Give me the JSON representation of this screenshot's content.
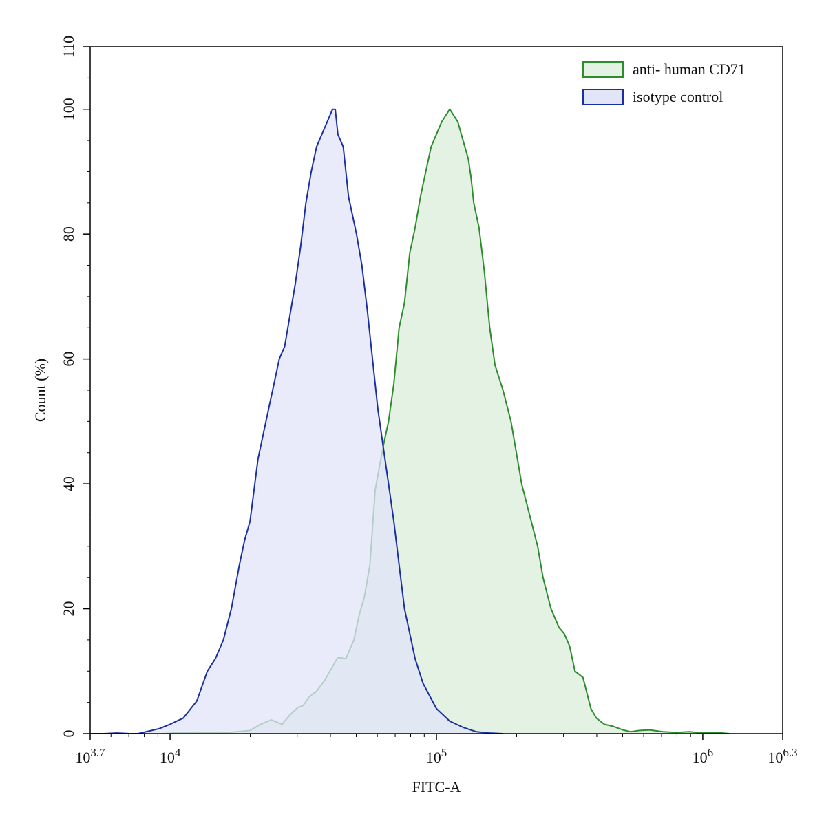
{
  "chart_data": {
    "type": "area",
    "title": "",
    "xlabel": "FITC-A",
    "ylabel": "Count  (%)",
    "x_scale": "log10",
    "xlim": [
      3.7,
      6.3
    ],
    "ylim": [
      0,
      110
    ],
    "x_ticks": [
      {
        "value": 3.7,
        "base": "10",
        "exp": "3.7"
      },
      {
        "value": 4,
        "base": "10",
        "exp": "4"
      },
      {
        "value": 5,
        "base": "10",
        "exp": "5"
      },
      {
        "value": 6,
        "base": "10",
        "exp": "6"
      },
      {
        "value": 6.3,
        "base": "10",
        "exp": "6.3"
      }
    ],
    "y_ticks": [
      0,
      20,
      40,
      60,
      80,
      100,
      110
    ],
    "grid": false,
    "legend_position": "top-right",
    "series": [
      {
        "name": "anti- human CD71",
        "stroke": "#2e8b2e",
        "fill": "#e4f2e4",
        "x": [
          3.97,
          4.05,
          4.1,
          4.15,
          4.2,
          4.25,
          4.3,
          4.34,
          4.38,
          4.42,
          4.45,
          4.48,
          4.5,
          4.52,
          4.55,
          4.58,
          4.6,
          4.63,
          4.66,
          4.69,
          4.71,
          4.73,
          4.75,
          4.77,
          4.8,
          4.82,
          4.84,
          4.86,
          4.88,
          4.9,
          4.92,
          4.94,
          4.96,
          4.98,
          5.0,
          5.02,
          5.05,
          5.08,
          5.1,
          5.12,
          5.13,
          5.14,
          5.16,
          5.18,
          5.2,
          5.22,
          5.25,
          5.28,
          5.3,
          5.32,
          5.35,
          5.38,
          5.4,
          5.43,
          5.46,
          5.48,
          5.5,
          5.52,
          5.55,
          5.58,
          5.6,
          5.63,
          5.66,
          5.7,
          5.73,
          5.76,
          5.8,
          5.85,
          5.9,
          5.95,
          6.0,
          6.05,
          6.1
        ],
        "y": [
          0,
          0.2,
          0.1,
          0.2,
          0.1,
          0.3,
          0.5,
          1.5,
          2.2,
          1.5,
          3,
          4.2,
          4.5,
          5.8,
          6.8,
          8.5,
          10,
          12.2,
          12,
          15,
          19,
          22,
          27,
          39,
          46,
          50,
          56,
          65,
          69,
          77,
          81,
          86,
          90,
          94,
          96,
          98,
          100,
          98,
          95,
          92,
          89,
          85,
          81,
          74,
          65,
          59,
          55,
          50,
          45,
          40,
          35,
          30,
          25,
          20,
          17,
          16,
          14,
          10,
          9,
          4,
          2.5,
          1.5,
          1.2,
          0.6,
          0.3,
          0.5,
          0.6,
          0.3,
          0.2,
          0.3,
          0.1,
          0.2,
          0
        ]
      },
      {
        "name": "isotype control",
        "stroke": "#1a2fa0",
        "fill": "#e2e4f8",
        "x": [
          3.7,
          3.75,
          3.8,
          3.85,
          3.88,
          3.92,
          3.96,
          4.0,
          4.05,
          4.1,
          4.14,
          4.17,
          4.2,
          4.23,
          4.26,
          4.28,
          4.3,
          4.33,
          4.35,
          4.37,
          4.39,
          4.41,
          4.43,
          4.45,
          4.47,
          4.49,
          4.51,
          4.53,
          4.55,
          4.57,
          4.59,
          4.61,
          4.62,
          4.63,
          4.65,
          4.67,
          4.7,
          4.72,
          4.74,
          4.76,
          4.78,
          4.8,
          4.82,
          4.84,
          4.86,
          4.88,
          4.9,
          4.92,
          4.95,
          5.0,
          5.05,
          5.1,
          5.15,
          5.2,
          5.25
        ],
        "y": [
          0,
          0,
          0.1,
          0,
          0,
          0.4,
          0.8,
          1.5,
          2.5,
          5.2,
          10,
          12,
          15,
          20,
          27,
          31,
          34,
          44,
          48,
          52,
          56,
          60,
          62,
          67,
          72,
          78,
          85,
          90,
          94,
          96,
          98,
          100,
          100,
          96,
          94,
          86,
          80,
          75,
          68,
          60,
          52,
          46,
          40,
          34,
          27,
          20,
          16,
          12,
          8,
          4,
          2,
          1,
          0.3,
          0.1,
          0
        ]
      }
    ]
  }
}
